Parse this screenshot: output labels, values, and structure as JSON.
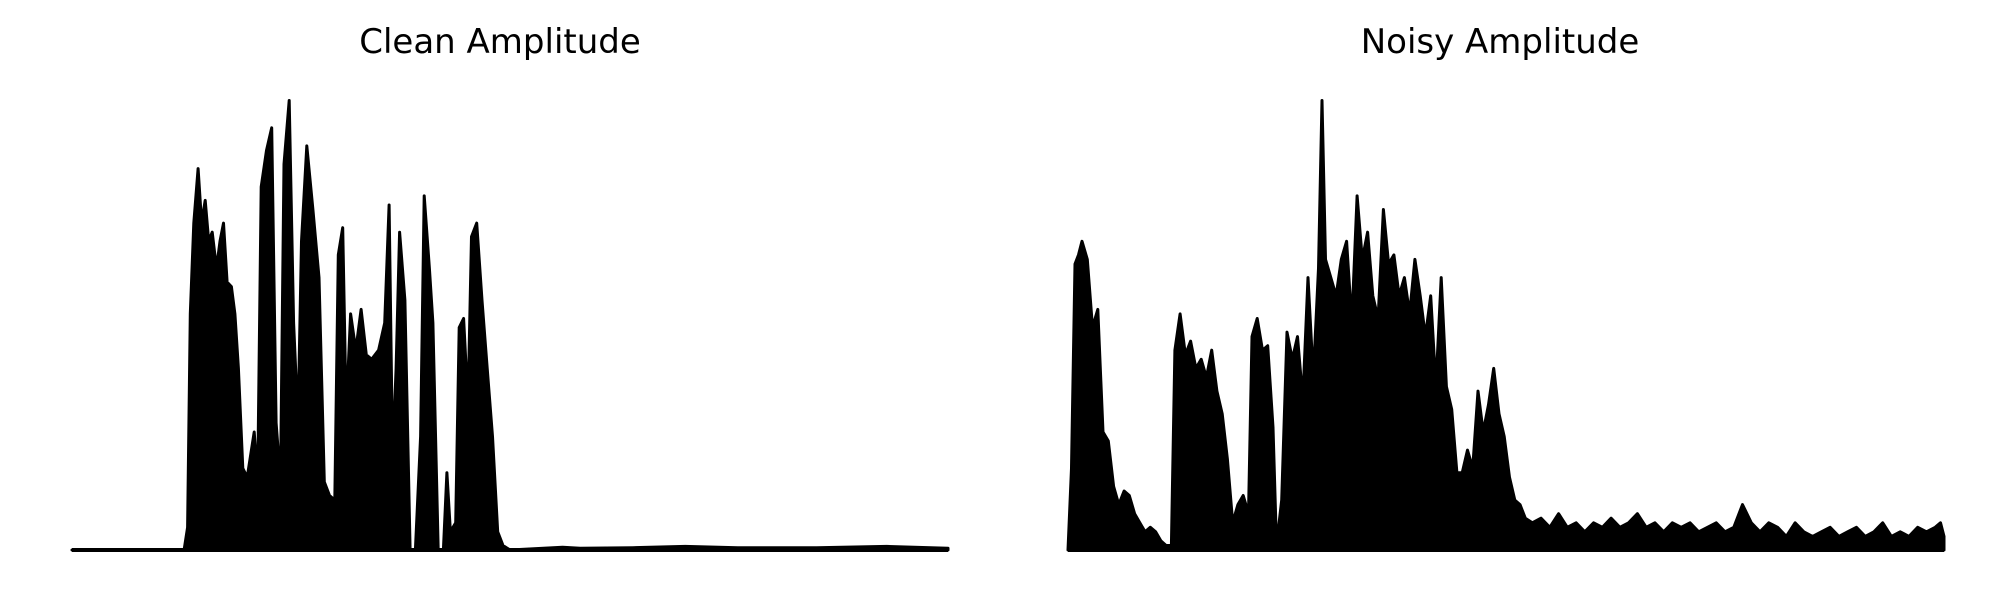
{
  "chart_data": [
    {
      "type": "area",
      "title": "Clean Amplitude",
      "xlabel": "",
      "ylabel": "",
      "x_range": [
        0,
        1
      ],
      "ylim": [
        0,
        1
      ],
      "axes_visible": false,
      "grid": false,
      "color": "#000000",
      "envelope": [
        [
          0.0,
          0.0
        ],
        [
          0.128,
          0.0
        ],
        [
          0.132,
          0.05
        ],
        [
          0.135,
          0.52
        ],
        [
          0.139,
          0.72
        ],
        [
          0.144,
          0.84
        ],
        [
          0.148,
          0.72
        ],
        [
          0.152,
          0.77
        ],
        [
          0.156,
          0.68
        ],
        [
          0.16,
          0.7
        ],
        [
          0.165,
          0.62
        ],
        [
          0.169,
          0.68
        ],
        [
          0.173,
          0.72
        ],
        [
          0.177,
          0.59
        ],
        [
          0.182,
          0.58
        ],
        [
          0.186,
          0.52
        ],
        [
          0.19,
          0.4
        ],
        [
          0.195,
          0.18
        ],
        [
          0.2,
          0.16
        ],
        [
          0.204,
          0.21
        ],
        [
          0.208,
          0.26
        ],
        [
          0.212,
          0.15
        ],
        [
          0.216,
          0.8
        ],
        [
          0.222,
          0.88
        ],
        [
          0.228,
          0.93
        ],
        [
          0.233,
          0.28
        ],
        [
          0.238,
          0.15
        ],
        [
          0.242,
          0.85
        ],
        [
          0.248,
          0.99
        ],
        [
          0.253,
          0.5
        ],
        [
          0.258,
          0.28
        ],
        [
          0.262,
          0.68
        ],
        [
          0.268,
          0.89
        ],
        [
          0.275,
          0.75
        ],
        [
          0.282,
          0.6
        ],
        [
          0.288,
          0.15
        ],
        [
          0.294,
          0.12
        ],
        [
          0.3,
          0.11
        ],
        [
          0.304,
          0.65
        ],
        [
          0.309,
          0.71
        ],
        [
          0.313,
          0.3
        ],
        [
          0.318,
          0.52
        ],
        [
          0.324,
          0.44
        ],
        [
          0.33,
          0.53
        ],
        [
          0.336,
          0.43
        ],
        [
          0.342,
          0.42
        ],
        [
          0.35,
          0.44
        ],
        [
          0.357,
          0.5
        ],
        [
          0.362,
          0.76
        ],
        [
          0.366,
          0.2
        ],
        [
          0.37,
          0.4
        ],
        [
          0.374,
          0.7
        ],
        [
          0.38,
          0.55
        ],
        [
          0.386,
          0.0
        ],
        [
          0.392,
          0.0
        ],
        [
          0.398,
          0.25
        ],
        [
          0.402,
          0.78
        ],
        [
          0.408,
          0.62
        ],
        [
          0.412,
          0.5
        ],
        [
          0.418,
          0.0
        ],
        [
          0.424,
          0.0
        ],
        [
          0.428,
          0.17
        ],
        [
          0.432,
          0.04
        ],
        [
          0.438,
          0.06
        ],
        [
          0.442,
          0.49
        ],
        [
          0.447,
          0.51
        ],
        [
          0.452,
          0.32
        ],
        [
          0.456,
          0.69
        ],
        [
          0.462,
          0.72
        ],
        [
          0.468,
          0.55
        ],
        [
          0.474,
          0.4
        ],
        [
          0.48,
          0.25
        ],
        [
          0.486,
          0.04
        ],
        [
          0.492,
          0.01
        ],
        [
          0.5,
          0.0
        ],
        [
          0.56,
          0.006
        ],
        [
          0.58,
          0.004
        ],
        [
          0.64,
          0.005
        ],
        [
          0.7,
          0.008
        ],
        [
          0.76,
          0.005
        ],
        [
          0.85,
          0.005
        ],
        [
          0.93,
          0.008
        ],
        [
          1.0,
          0.004
        ]
      ]
    },
    {
      "type": "area",
      "title": "Noisy Amplitude",
      "xlabel": "",
      "ylabel": "",
      "x_range": [
        0,
        1
      ],
      "ylim": [
        0,
        1
      ],
      "axes_visible": false,
      "grid": false,
      "color": "#000000",
      "envelope": [
        [
          0.0,
          0.0
        ],
        [
          0.004,
          0.18
        ],
        [
          0.008,
          0.63
        ],
        [
          0.012,
          0.65
        ],
        [
          0.016,
          0.68
        ],
        [
          0.022,
          0.64
        ],
        [
          0.028,
          0.49
        ],
        [
          0.034,
          0.53
        ],
        [
          0.04,
          0.26
        ],
        [
          0.046,
          0.24
        ],
        [
          0.052,
          0.14
        ],
        [
          0.058,
          0.1
        ],
        [
          0.064,
          0.13
        ],
        [
          0.07,
          0.12
        ],
        [
          0.076,
          0.08
        ],
        [
          0.082,
          0.06
        ],
        [
          0.088,
          0.04
        ],
        [
          0.094,
          0.05
        ],
        [
          0.1,
          0.04
        ],
        [
          0.106,
          0.02
        ],
        [
          0.112,
          0.01
        ],
        [
          0.118,
          0.01
        ],
        [
          0.122,
          0.44
        ],
        [
          0.128,
          0.52
        ],
        [
          0.134,
          0.43
        ],
        [
          0.14,
          0.46
        ],
        [
          0.146,
          0.4
        ],
        [
          0.152,
          0.42
        ],
        [
          0.158,
          0.38
        ],
        [
          0.164,
          0.44
        ],
        [
          0.17,
          0.35
        ],
        [
          0.176,
          0.3
        ],
        [
          0.182,
          0.2
        ],
        [
          0.188,
          0.06
        ],
        [
          0.194,
          0.1
        ],
        [
          0.2,
          0.12
        ],
        [
          0.206,
          0.08
        ],
        [
          0.21,
          0.47
        ],
        [
          0.216,
          0.51
        ],
        [
          0.222,
          0.44
        ],
        [
          0.228,
          0.45
        ],
        [
          0.234,
          0.27
        ],
        [
          0.238,
          0.01
        ],
        [
          0.244,
          0.11
        ],
        [
          0.25,
          0.48
        ],
        [
          0.256,
          0.42
        ],
        [
          0.262,
          0.47
        ],
        [
          0.268,
          0.33
        ],
        [
          0.274,
          0.6
        ],
        [
          0.28,
          0.38
        ],
        [
          0.286,
          0.62
        ],
        [
          0.29,
          0.99
        ],
        [
          0.294,
          0.64
        ],
        [
          0.3,
          0.6
        ],
        [
          0.306,
          0.56
        ],
        [
          0.312,
          0.64
        ],
        [
          0.318,
          0.68
        ],
        [
          0.324,
          0.5
        ],
        [
          0.33,
          0.78
        ],
        [
          0.336,
          0.64
        ],
        [
          0.342,
          0.7
        ],
        [
          0.348,
          0.56
        ],
        [
          0.354,
          0.51
        ],
        [
          0.36,
          0.75
        ],
        [
          0.366,
          0.63
        ],
        [
          0.372,
          0.65
        ],
        [
          0.378,
          0.56
        ],
        [
          0.384,
          0.6
        ],
        [
          0.39,
          0.52
        ],
        [
          0.396,
          0.64
        ],
        [
          0.402,
          0.56
        ],
        [
          0.408,
          0.47
        ],
        [
          0.414,
          0.56
        ],
        [
          0.42,
          0.36
        ],
        [
          0.426,
          0.6
        ],
        [
          0.432,
          0.36
        ],
        [
          0.438,
          0.31
        ],
        [
          0.444,
          0.17
        ],
        [
          0.45,
          0.17
        ],
        [
          0.456,
          0.22
        ],
        [
          0.462,
          0.18
        ],
        [
          0.468,
          0.35
        ],
        [
          0.474,
          0.26
        ],
        [
          0.48,
          0.32
        ],
        [
          0.486,
          0.4
        ],
        [
          0.492,
          0.3
        ],
        [
          0.498,
          0.25
        ],
        [
          0.504,
          0.16
        ],
        [
          0.51,
          0.11
        ],
        [
          0.516,
          0.1
        ],
        [
          0.522,
          0.07
        ],
        [
          0.53,
          0.06
        ],
        [
          0.54,
          0.07
        ],
        [
          0.55,
          0.05
        ],
        [
          0.56,
          0.08
        ],
        [
          0.57,
          0.05
        ],
        [
          0.58,
          0.06
        ],
        [
          0.59,
          0.04
        ],
        [
          0.6,
          0.06
        ],
        [
          0.61,
          0.05
        ],
        [
          0.62,
          0.07
        ],
        [
          0.63,
          0.05
        ],
        [
          0.64,
          0.06
        ],
        [
          0.65,
          0.08
        ],
        [
          0.66,
          0.05
        ],
        [
          0.67,
          0.06
        ],
        [
          0.68,
          0.04
        ],
        [
          0.69,
          0.06
        ],
        [
          0.7,
          0.05
        ],
        [
          0.71,
          0.06
        ],
        [
          0.72,
          0.04
        ],
        [
          0.73,
          0.05
        ],
        [
          0.74,
          0.06
        ],
        [
          0.75,
          0.04
        ],
        [
          0.76,
          0.05
        ],
        [
          0.77,
          0.1
        ],
        [
          0.78,
          0.06
        ],
        [
          0.79,
          0.04
        ],
        [
          0.8,
          0.06
        ],
        [
          0.81,
          0.05
        ],
        [
          0.82,
          0.03
        ],
        [
          0.83,
          0.06
        ],
        [
          0.84,
          0.04
        ],
        [
          0.85,
          0.03
        ],
        [
          0.86,
          0.04
        ],
        [
          0.87,
          0.05
        ],
        [
          0.88,
          0.03
        ],
        [
          0.89,
          0.04
        ],
        [
          0.9,
          0.05
        ],
        [
          0.91,
          0.03
        ],
        [
          0.92,
          0.04
        ],
        [
          0.93,
          0.06
        ],
        [
          0.94,
          0.03
        ],
        [
          0.95,
          0.04
        ],
        [
          0.96,
          0.03
        ],
        [
          0.97,
          0.05
        ],
        [
          0.98,
          0.04
        ],
        [
          0.99,
          0.05
        ],
        [
          0.996,
          0.06
        ],
        [
          1.0,
          0.03
        ]
      ]
    }
  ]
}
